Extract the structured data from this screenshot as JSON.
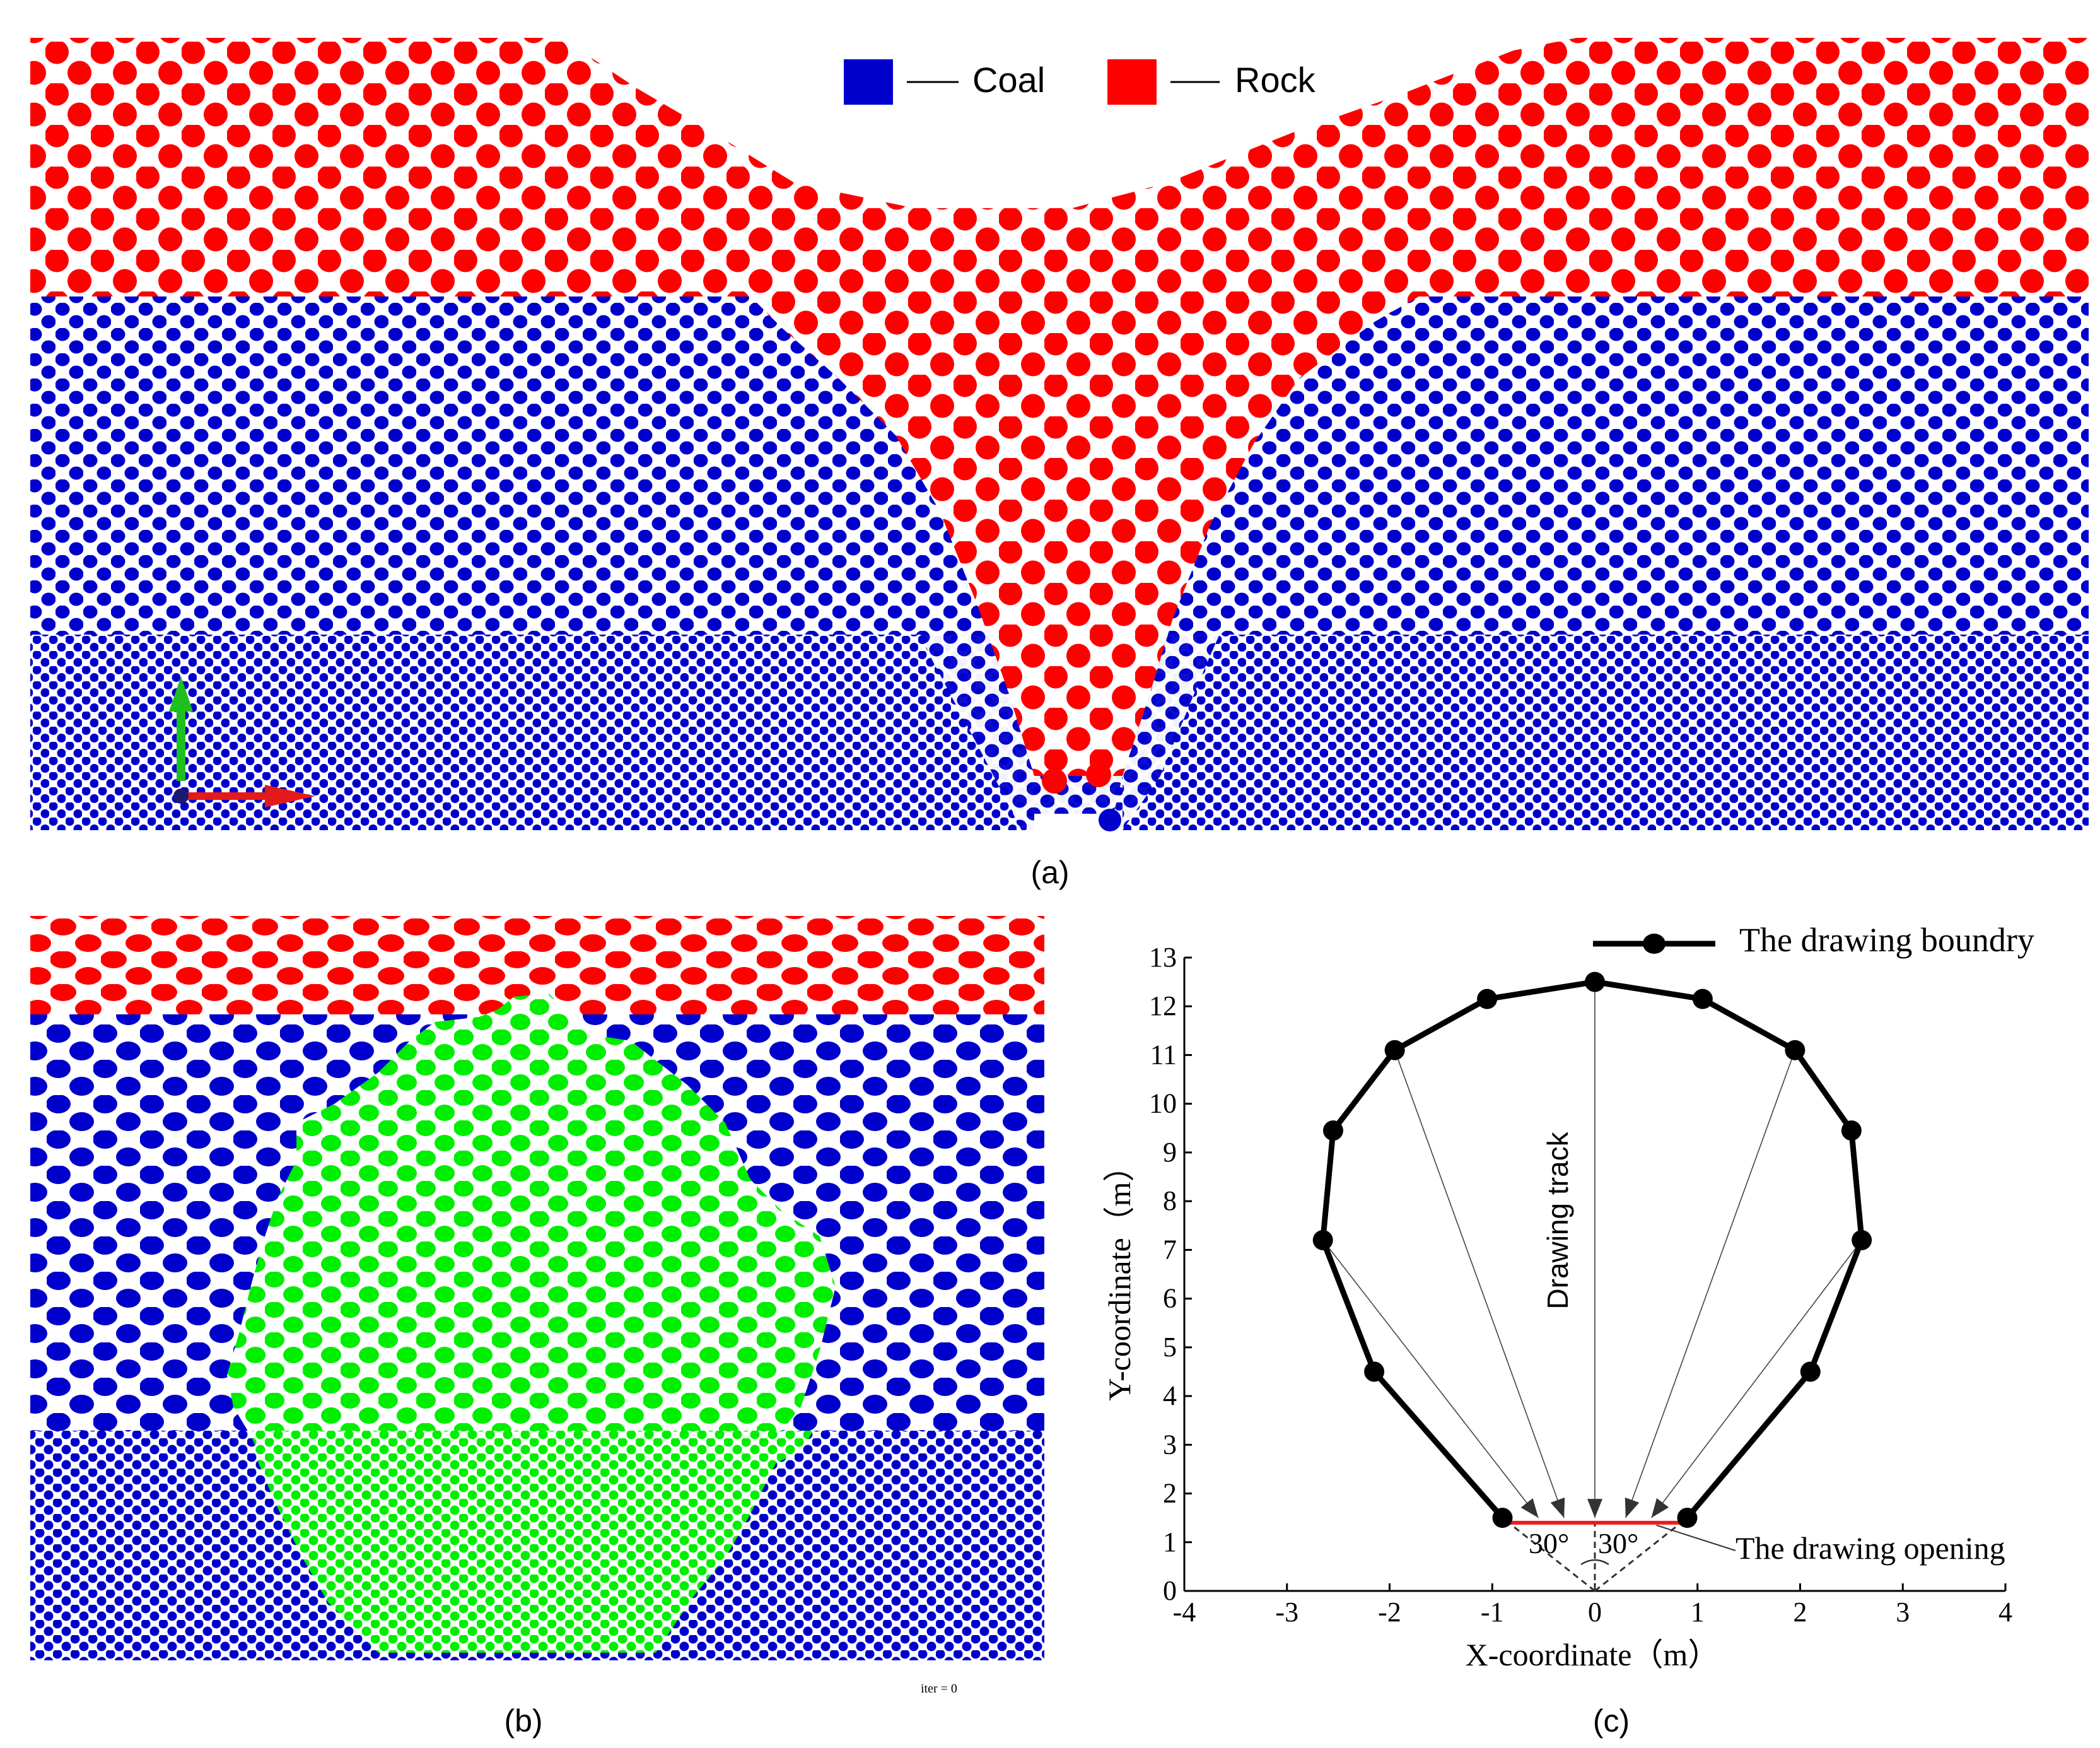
{
  "colors": {
    "coal": "#0000cc",
    "rock": "#ff0000",
    "extracted": "#00ee00",
    "background": "#ffffff",
    "boundary": "#000000",
    "opening": "#ee1c1c"
  },
  "panel_a": {
    "caption": "(a)",
    "legend": [
      {
        "label": "Coal",
        "color_key": "coal"
      },
      {
        "label": "Rock",
        "color_key": "rock"
      }
    ]
  },
  "panel_b": {
    "caption": "(b)",
    "iter_label": "iter = 0"
  },
  "panel_c": {
    "caption": "(c)",
    "legend_label": "The drawing boundry",
    "opening_label": "The drawing opening",
    "track_label": "Drawing track",
    "angle_left": "30°",
    "angle_right": "30°"
  },
  "chart_data": {
    "type": "line",
    "title": "",
    "xlabel": "X-coordinate（m）",
    "ylabel": "Y-coordinate（m）",
    "xlim": [
      -4,
      4
    ],
    "ylim": [
      0,
      13
    ],
    "xticks": [
      -4,
      -3,
      -2,
      -1,
      0,
      1,
      2,
      3,
      4
    ],
    "yticks": [
      0,
      1,
      2,
      3,
      4,
      5,
      6,
      7,
      8,
      9,
      10,
      11,
      12,
      13
    ],
    "series": [
      {
        "name": "The drawing boundry",
        "x": [
          -0.9,
          -2.15,
          -2.65,
          -2.55,
          -1.95,
          -1.05,
          0.0,
          1.05,
          1.95,
          2.5,
          2.6,
          2.1,
          0.9
        ],
        "y": [
          1.5,
          4.5,
          7.2,
          9.45,
          11.1,
          12.15,
          12.5,
          12.15,
          11.1,
          9.45,
          7.2,
          4.5,
          1.5
        ]
      }
    ],
    "opening": {
      "x": [
        -0.85,
        0.85
      ],
      "y": 1.4
    },
    "tracks_from": [
      [
        -2.65,
        7.2
      ],
      [
        -1.95,
        11.1
      ],
      [
        0.0,
        12.5
      ],
      [
        1.95,
        11.1
      ],
      [
        2.6,
        7.2
      ]
    ],
    "tracks_to": [
      [
        -0.55,
        1.5
      ],
      [
        -0.3,
        1.5
      ],
      [
        0.0,
        1.5
      ],
      [
        0.3,
        1.5
      ],
      [
        0.55,
        1.5
      ]
    ]
  }
}
